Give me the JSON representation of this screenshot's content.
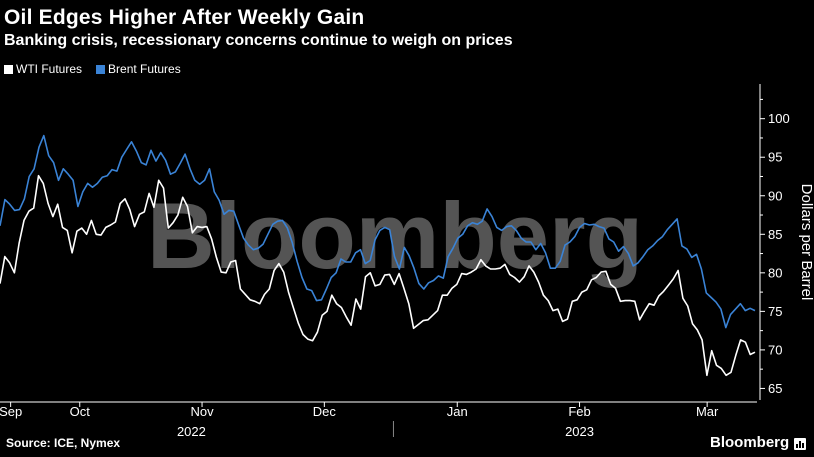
{
  "header": {
    "title": "Oil Edges Higher After Weekly Gain",
    "subtitle": "Banking crisis, recessionary concerns continue to weigh on prices"
  },
  "legend": {
    "items": [
      {
        "label": "WTI Futures",
        "color": "#ffffff"
      },
      {
        "label": "Brent Futures",
        "color": "#3a83d6"
      }
    ]
  },
  "footer": {
    "source": "Source: ICE, Nymex",
    "brand": "Bloomberg",
    "logo_icon": "bloomberg-terminal-icon"
  },
  "watermark": "Bloomberg",
  "chart_data": {
    "type": "line",
    "title": "Oil Edges Higher After Weekly Gain",
    "subtitle": "Banking crisis, recessionary concerns continue to weigh on prices",
    "xlabel": "",
    "ylabel": "Dollars per Barrel",
    "ylim": [
      63.5,
      104.5
    ],
    "yticks": [
      65,
      70,
      75,
      80,
      85,
      90,
      95,
      100
    ],
    "y_axis_side": "right",
    "grid": false,
    "legend_position": "top-left",
    "x_range": [
      0,
      142
    ],
    "xticks": [
      {
        "label": "Sep",
        "x": 2
      },
      {
        "label": "Oct",
        "x": 15
      },
      {
        "label": "Nov",
        "x": 38
      },
      {
        "label": "Dec",
        "x": 61
      },
      {
        "label": "Jan",
        "x": 86
      },
      {
        "label": "Feb",
        "x": 109
      },
      {
        "label": "Mar",
        "x": 133
      }
    ],
    "year_labels": [
      {
        "label": "2022",
        "x": 36
      },
      {
        "label": "2023",
        "x": 109
      }
    ],
    "year_divider_x": 74,
    "series": [
      {
        "name": "WTI Futures",
        "color": "#ffffff",
        "values": [
          78.6,
          82.1,
          81.3,
          80.0,
          83.9,
          86.8,
          88.0,
          88.4,
          92.6,
          91.6,
          89.0,
          87.3,
          88.9,
          85.9,
          85.5,
          82.6,
          85.4,
          85.8,
          85.0,
          86.8,
          85.0,
          84.9,
          85.9,
          86.2,
          86.6,
          89.0,
          89.6,
          88.2,
          86.0,
          87.6,
          87.9,
          90.3,
          88.5,
          92.0,
          91.0,
          85.8,
          86.5,
          87.5,
          89.8,
          88.6,
          85.2,
          86.0,
          85.9,
          86.0,
          84.4,
          82.0,
          80.1,
          80.0,
          81.4,
          81.6,
          77.9,
          77.2,
          76.5,
          76.3,
          76.0,
          77.2,
          77.9,
          80.3,
          81.2,
          80.1,
          77.5,
          75.5,
          73.5,
          72.0,
          71.4,
          71.2,
          72.3,
          74.5,
          75.0,
          77.1,
          76.0,
          75.5,
          74.3,
          73.2,
          76.6,
          75.3,
          79.5,
          80.0,
          78.3,
          78.5,
          79.7,
          79.8,
          78.5,
          79.9,
          78.0,
          76.0,
          72.8,
          73.3,
          73.8,
          73.9,
          74.5,
          75.1,
          77.1,
          77.1,
          78.0,
          78.5,
          79.9,
          79.8,
          80.1,
          80.5,
          81.7,
          80.9,
          80.5,
          80.5,
          80.6,
          81.1,
          79.8,
          79.4,
          78.8,
          79.5,
          80.9,
          80.1,
          78.8,
          77.1,
          76.4,
          75.1,
          75.3,
          73.7,
          74.0,
          76.3,
          76.5,
          77.5,
          77.8,
          79.1,
          79.4,
          80.1,
          80.2,
          78.5,
          78.0,
          76.3,
          76.4,
          76.4,
          76.3,
          73.9,
          75.0,
          76.0,
          75.8,
          77.0,
          77.6,
          78.4,
          79.2,
          80.3,
          76.7,
          75.7,
          73.4,
          72.6,
          71.3,
          66.7,
          69.9,
          68.0,
          67.6,
          66.7,
          67.1,
          69.3,
          71.3,
          71.0,
          69.4,
          69.7
        ]
      },
      {
        "name": "Brent Futures",
        "color": "#3a83d6",
        "values": [
          86.1,
          89.5,
          88.9,
          88.1,
          88.2,
          89.6,
          92.5,
          93.5,
          96.3,
          97.8,
          95.2,
          94.3,
          92.0,
          93.5,
          92.8,
          92.0,
          88.6,
          90.5,
          91.6,
          91.1,
          91.6,
          92.4,
          92.6,
          93.4,
          93.2,
          95.0,
          96.0,
          97.0,
          95.8,
          94.3,
          94.0,
          95.9,
          94.5,
          95.6,
          94.6,
          92.8,
          93.1,
          94.2,
          95.4,
          93.5,
          92.0,
          91.5,
          92.0,
          93.5,
          90.5,
          89.4,
          87.6,
          88.1,
          88.0,
          86.2,
          84.5,
          83.6,
          83.0,
          83.2,
          83.7,
          85.0,
          86.3,
          86.7,
          86.8,
          85.8,
          83.9,
          81.5,
          79.4,
          77.9,
          77.7,
          76.4,
          76.5,
          77.9,
          79.4,
          80.0,
          81.8,
          81.4,
          81.4,
          82.6,
          83.0,
          81.2,
          81.6,
          84.3,
          85.5,
          85.9,
          85.6,
          82.1,
          80.5,
          83.3,
          82.2,
          80.6,
          78.6,
          77.9,
          78.7,
          79.0,
          79.6,
          79.3,
          82.1,
          83.2,
          84.5,
          85.0,
          86.1,
          86.5,
          86.3,
          86.7,
          88.3,
          87.3,
          85.9,
          85.5,
          86.0,
          86.1,
          85.5,
          84.5,
          84.0,
          84.0,
          83.0,
          83.8,
          82.6,
          80.6,
          80.6,
          81.5,
          83.6,
          84.0,
          84.7,
          85.9,
          86.4,
          86.2,
          86.3,
          86.0,
          85.8,
          84.4,
          84.0,
          82.8,
          83.4,
          82.5,
          80.9,
          81.3,
          82.1,
          83.0,
          83.5,
          84.2,
          84.7,
          85.6,
          86.3,
          87.0,
          83.5,
          83.1,
          82.0,
          82.4,
          80.5,
          77.4,
          76.8,
          76.2,
          75.3,
          72.9,
          74.6,
          75.3,
          76.0,
          75.1,
          75.4,
          75.1
        ]
      }
    ]
  }
}
